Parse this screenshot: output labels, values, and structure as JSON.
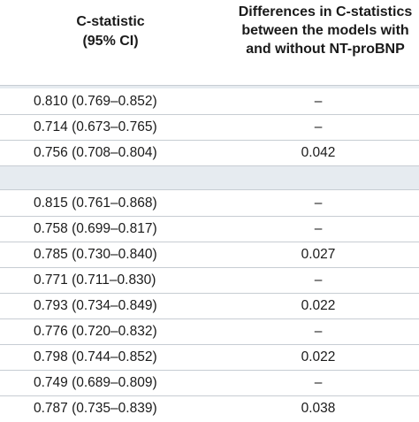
{
  "header": {
    "col1_line1": "C-statistic",
    "col1_line2": "(95% CI)",
    "col2_line1": "Differences in C-statistics",
    "col2_line2": "between the models with",
    "col2_line3": "and without NT-proBNP"
  },
  "group1": [
    {
      "ci": "0.810 (0.769–0.852)",
      "diff": "–"
    },
    {
      "ci": "0.714 (0.673–0.765)",
      "diff": "–"
    },
    {
      "ci": "0.756 (0.708–0.804)",
      "diff": "0.042"
    }
  ],
  "group2": [
    {
      "ci": "0.815 (0.761–0.868)",
      "diff": "–"
    },
    {
      "ci": "0.758 (0.699–0.817)",
      "diff": "–"
    },
    {
      "ci": "0.785 (0.730–0.840)",
      "diff": "0.027"
    },
    {
      "ci": "0.771 (0.711–0.830)",
      "diff": "–"
    },
    {
      "ci": "0.793 (0.734–0.849)",
      "diff": "0.022"
    },
    {
      "ci": "0.776 (0.720–0.832)",
      "diff": "–"
    },
    {
      "ci": "0.798 (0.744–0.852)",
      "diff": "0.022"
    },
    {
      "ci": "0.749 (0.689–0.809)",
      "diff": "–"
    },
    {
      "ci": "0.787 (0.735–0.839)",
      "diff": "0.038"
    }
  ],
  "colors": {
    "band": "#e6ebf0",
    "rule": "#c7cdd3",
    "text": "#1a1a1a"
  }
}
